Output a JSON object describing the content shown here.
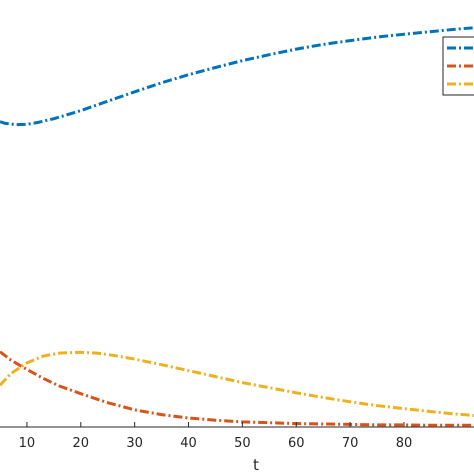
{
  "chart_data": {
    "type": "line",
    "xlabel": "t",
    "ylabel": "",
    "title": "",
    "xlim": [
      5,
      93
    ],
    "ylim": [
      0,
      1
    ],
    "x_ticks": [
      10,
      20,
      30,
      40,
      50,
      60,
      70,
      80
    ],
    "grid": false,
    "legend_position": "top-right",
    "legend_entries": [
      "",
      "",
      ""
    ],
    "series": [
      {
        "color": "#0072BD",
        "x": [
          5,
          6,
          8,
          10,
          12,
          15,
          20,
          25,
          30,
          35,
          40,
          45,
          50,
          55,
          60,
          65,
          70,
          75,
          80,
          85,
          90,
          93
        ],
        "y": [
          0.715,
          0.711,
          0.708,
          0.709,
          0.713,
          0.722,
          0.741,
          0.763,
          0.785,
          0.806,
          0.825,
          0.842,
          0.858,
          0.872,
          0.885,
          0.896,
          0.905,
          0.913,
          0.92,
          0.926,
          0.932,
          0.935
        ]
      },
      {
        "color": "#D95319",
        "x": [
          5,
          7,
          10,
          13,
          16,
          20,
          25,
          30,
          35,
          40,
          45,
          50,
          55,
          60,
          65,
          70,
          75,
          80,
          85,
          90,
          93
        ],
        "y": [
          0.176,
          0.157,
          0.135,
          0.114,
          0.096,
          0.078,
          0.057,
          0.04,
          0.029,
          0.021,
          0.016,
          0.012,
          0.01,
          0.008,
          0.007,
          0.006,
          0.005,
          0.005,
          0.004,
          0.004,
          0.004
        ]
      },
      {
        "color": "#EDB120",
        "x": [
          5,
          7,
          10,
          13,
          16,
          20,
          23,
          26,
          30,
          35,
          40,
          45,
          50,
          55,
          60,
          65,
          70,
          75,
          80,
          85,
          90,
          93
        ],
        "y": [
          0.098,
          0.125,
          0.15,
          0.166,
          0.173,
          0.175,
          0.173,
          0.168,
          0.159,
          0.146,
          0.132,
          0.118,
          0.104,
          0.092,
          0.08,
          0.069,
          0.059,
          0.05,
          0.043,
          0.036,
          0.03,
          0.027
        ]
      }
    ]
  }
}
